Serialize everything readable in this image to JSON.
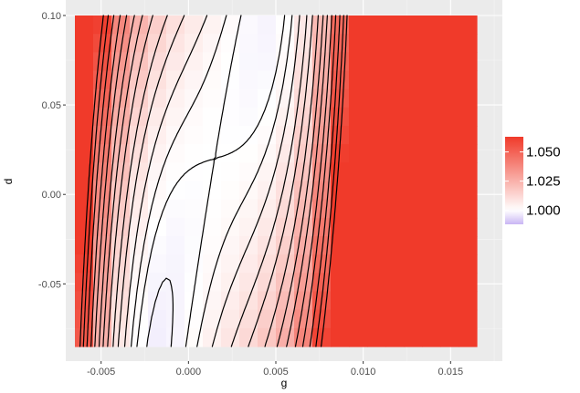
{
  "chart_data": {
    "type": "heatmap",
    "title": "",
    "xlabel": "g",
    "ylabel": "d",
    "xlim": [
      -0.0065,
      0.0165
    ],
    "ylim": [
      -0.085,
      0.1
    ],
    "x_ticks": [
      -0.005,
      0.0,
      0.005,
      0.01,
      0.015
    ],
    "x_tick_labels": [
      "-0.005",
      "0.000",
      "0.005",
      "0.010",
      "0.015"
    ],
    "y_ticks": [
      -0.05,
      0.0,
      0.05,
      0.1
    ],
    "y_tick_labels": [
      "-0.05",
      "0.00",
      "0.05",
      "0.10"
    ],
    "grid": true,
    "contours": true,
    "color_scale": {
      "low": "#c9b6f4",
      "mid": "#ffffff",
      "high": "#f03a2a",
      "midpoint": 1.0,
      "limits": [
        0.988,
        1.063
      ]
    },
    "legend": {
      "position": "right",
      "ticks": [
        1.0,
        1.025,
        1.05
      ],
      "tick_labels": [
        "1.000",
        "1.025",
        "1.050"
      ]
    },
    "surface": {
      "description_of_function": "saddle-shaped response surface, value = z(g, d)",
      "center": [
        0.0015,
        0.02
      ],
      "base": 1.0,
      "cross_coef": -34,
      "g_quad_coef": 90,
      "d_quad_coef": 0.55,
      "d_cubic_coef": 0.5,
      "g_quartic_coef": 22000000
    },
    "contour_levels": [
      0.992,
      0.995,
      0.998,
      1.0,
      1.002,
      1.005,
      1.009,
      1.013,
      1.018,
      1.023,
      1.028,
      1.034,
      1.04,
      1.047,
      1.054,
      1.061
    ]
  }
}
